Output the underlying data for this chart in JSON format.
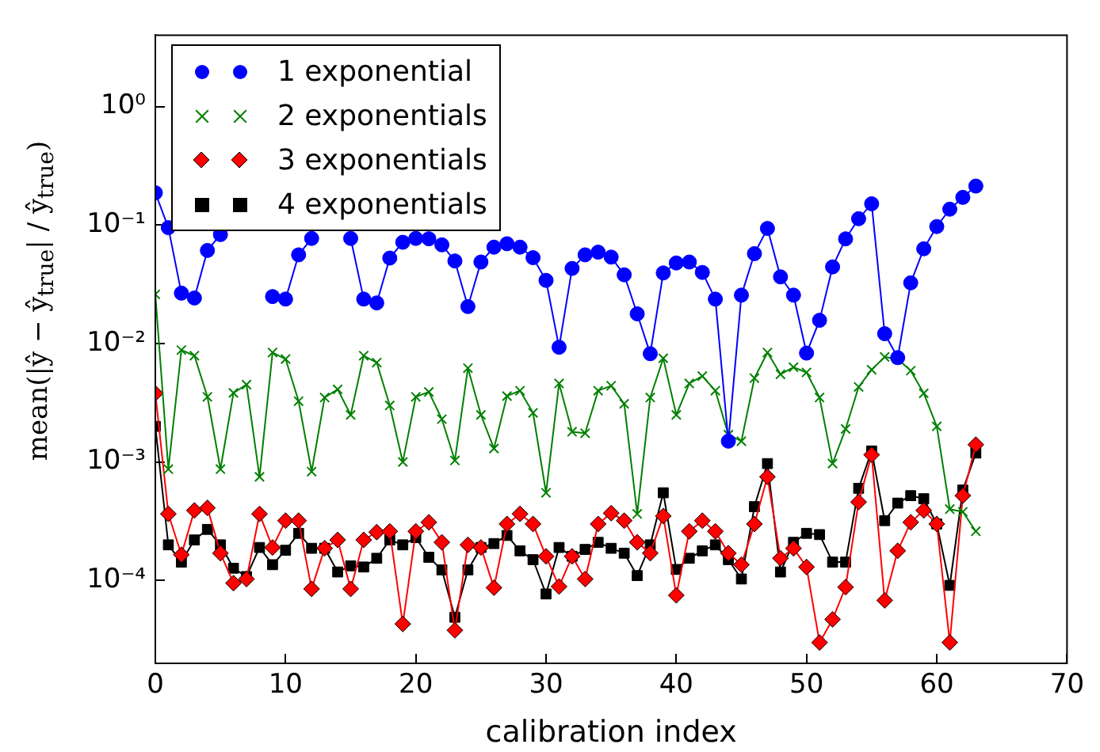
{
  "chart_data": {
    "type": "line",
    "xlabel": "calibration index",
    "ylabel": "mean(|ŷ − ŷ$_{true}$| / ŷ$_{true}$)",
    "x": [
      0,
      1,
      2,
      3,
      4,
      5,
      6,
      7,
      8,
      9,
      10,
      11,
      12,
      13,
      14,
      15,
      16,
      17,
      18,
      19,
      20,
      21,
      22,
      23,
      24,
      25,
      26,
      27,
      28,
      29,
      30,
      31,
      32,
      33,
      34,
      35,
      36,
      37,
      38,
      39,
      40,
      41,
      42,
      43,
      44,
      45,
      46,
      47,
      48,
      49,
      50,
      51,
      52,
      53,
      54,
      55,
      56,
      57,
      58,
      59,
      60,
      61,
      62,
      63
    ],
    "series": [
      {
        "name": "1 exponential",
        "color": "#0000ff",
        "marker": "circle",
        "values": [
          0.187,
          0.095,
          0.0266,
          0.0242,
          0.061,
          0.083,
          null,
          null,
          null,
          0.0249,
          0.0237,
          0.056,
          0.077,
          null,
          null,
          0.077,
          0.0237,
          0.022,
          0.0526,
          0.0715,
          0.077,
          0.0765,
          0.068,
          0.0497,
          0.0205,
          0.0487,
          0.065,
          0.0695,
          0.065,
          0.053,
          0.0341,
          0.0093,
          0.043,
          0.056,
          0.059,
          0.0536,
          0.038,
          0.0178,
          0.0082,
          0.0394,
          0.0478,
          0.0487,
          0.0398,
          0.0237,
          0.0015,
          0.0256,
          0.0573,
          0.0935,
          0.0365,
          0.0256,
          0.0083,
          0.0157,
          0.0443,
          0.0764,
          0.113,
          0.151,
          0.0121,
          0.0076,
          0.0325,
          0.063,
          0.097,
          0.136,
          0.171,
          0.213
        ]
      },
      {
        "name": "2 exponentials",
        "color": "#008000",
        "marker": "cross",
        "values": [
          0.026,
          0.00087,
          0.0088,
          0.0079,
          0.00355,
          0.00087,
          0.00383,
          0.0045,
          0.00075,
          0.0084,
          0.0074,
          0.00326,
          0.00083,
          0.0035,
          0.0041,
          0.0025,
          0.0079,
          0.0069,
          0.003,
          0.001,
          0.00355,
          0.0039,
          0.0023,
          0.00103,
          0.0062,
          0.0025,
          0.0013,
          0.0036,
          0.004,
          0.0026,
          0.00055,
          0.0046,
          0.0018,
          0.00175,
          0.004,
          0.0044,
          0.0031,
          0.000365,
          0.0035,
          0.0075,
          0.0025,
          0.0046,
          0.0053,
          0.004,
          0.0017,
          0.0015,
          0.0051,
          0.0084,
          0.0055,
          0.0063,
          0.0057,
          0.0035,
          0.00097,
          0.0019,
          0.0043,
          0.006,
          0.0077,
          0.0074,
          0.0059,
          0.0038,
          0.002,
          0.0004,
          0.00038,
          0.00026
        ]
      },
      {
        "name": "3 exponentials",
        "color": "#ff0000",
        "marker": "diamond",
        "values": [
          0.0038,
          0.000365,
          0.000165,
          0.00039,
          0.00041,
          0.00017,
          9.5e-05,
          0.000103,
          0.000365,
          0.00019,
          0.00032,
          0.00032,
          8.5e-05,
          0.000187,
          0.00022,
          8.5e-05,
          0.00022,
          0.000256,
          0.00026,
          4.3e-05,
          0.00026,
          0.00031,
          0.00021,
          3.8e-05,
          0.0002,
          0.00019,
          8.7e-05,
          0.0003,
          0.000365,
          0.0003,
          0.00016,
          8.9e-05,
          0.00016,
          0.000103,
          0.0003,
          0.00037,
          0.00032,
          0.00021,
          0.00017,
          0.00035,
          7.5e-05,
          0.00026,
          0.00032,
          0.00026,
          0.00017,
          0.000136,
          0.0003,
          0.00075,
          0.000154,
          0.000187,
          0.00013,
          3e-05,
          4.7e-05,
          8.8e-05,
          0.00046,
          0.00115,
          6.8e-05,
          0.000178,
          0.00031,
          0.00039,
          0.0003,
          3e-05,
          0.00052,
          0.0014
        ]
      },
      {
        "name": "4 exponentials",
        "color": "#000000",
        "marker": "square",
        "values": [
          0.002,
          0.0002,
          0.000143,
          0.00022,
          0.00027,
          0.0002,
          0.000127,
          0.000108,
          0.00019,
          0.000136,
          0.00018,
          0.00025,
          0.000187,
          0.000187,
          0.000118,
          0.000133,
          0.00013,
          0.000154,
          0.00022,
          0.0002,
          0.00023,
          0.000157,
          0.000123,
          4.9e-05,
          0.000123,
          0.00019,
          0.000205,
          0.00024,
          0.000178,
          0.00015,
          7.7e-05,
          0.00019,
          0.00016,
          0.000183,
          0.00021,
          0.000187,
          0.00017,
          0.00011,
          0.0002,
          0.00055,
          0.000124,
          0.000154,
          0.000178,
          0.0002,
          0.00015,
          0.000103,
          0.00042,
          0.00097,
          0.000118,
          0.00021,
          0.00025,
          0.000244,
          0.000143,
          0.000143,
          0.0006,
          0.00124,
          0.00032,
          0.00045,
          0.00052,
          0.00049,
          0.0003,
          9.1e-05,
          0.00058,
          0.00119
        ]
      }
    ],
    "xlim": [
      0,
      70
    ],
    "xticks": [
      0,
      10,
      20,
      30,
      40,
      50,
      60,
      70
    ],
    "ylim": [
      2e-05,
      4
    ],
    "log": "y",
    "yticks": [
      {
        "value": 0.0001,
        "label": "10⁻⁴"
      },
      {
        "value": 0.001,
        "label": "10⁻³"
      },
      {
        "value": 0.01,
        "label": "10⁻²"
      },
      {
        "value": 0.1,
        "label": "10⁻¹"
      },
      {
        "value": 1,
        "label": "10⁰"
      }
    ],
    "grid": false,
    "legend": "top left"
  }
}
